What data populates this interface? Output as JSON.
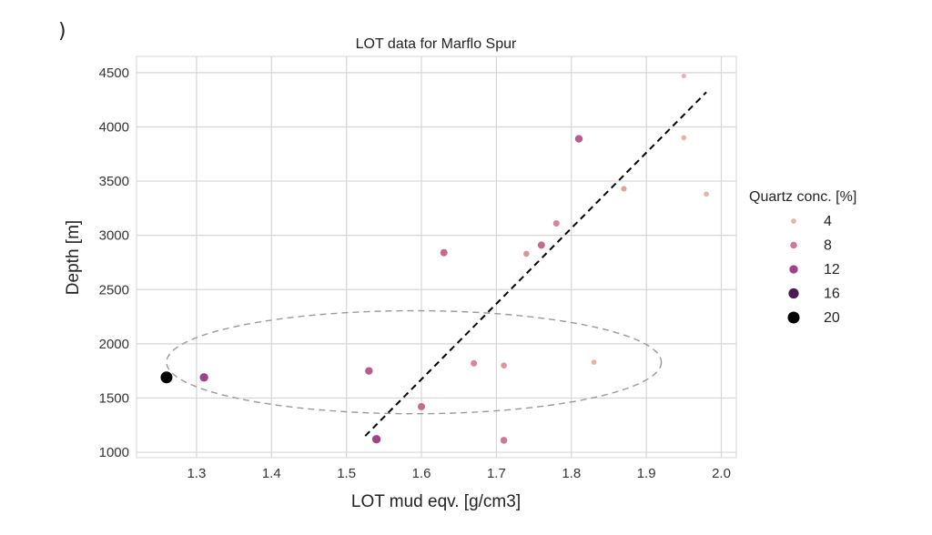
{
  "stray_mark": ")",
  "chart_data": {
    "type": "scatter",
    "title": "LOT data for Marflo Spur",
    "xlabel": "LOT mud eqv. [g/cm3]",
    "ylabel": "Depth [m]",
    "xlim": [
      1.22,
      2.02
    ],
    "ylim": [
      950,
      4650
    ],
    "xticks": [
      "1.3",
      "1.4",
      "1.5",
      "1.6",
      "1.7",
      "1.8",
      "1.9",
      "2.0"
    ],
    "yticks": [
      "1000",
      "1500",
      "2000",
      "2500",
      "3000",
      "3500",
      "4000",
      "4500"
    ],
    "grid": true,
    "legend": {
      "title": "Quartz conc. [%]",
      "placement": "right",
      "entries": [
        "4",
        "8",
        "12",
        "16",
        "20"
      ]
    },
    "colors": {
      "q4": "#e9b1a6",
      "q8": "#d07791",
      "q12": "#a04386",
      "q16": "#4a1a52",
      "q20": "#000000",
      "grid": "#d6d6d6",
      "trend": "#000000",
      "ellipse": "#999999"
    },
    "points": [
      {
        "x": 1.26,
        "y": 1690,
        "q": 20
      },
      {
        "x": 1.31,
        "y": 1690,
        "q": 12
      },
      {
        "x": 1.53,
        "y": 1750,
        "q": 10
      },
      {
        "x": 1.54,
        "y": 1120,
        "q": 12
      },
      {
        "x": 1.6,
        "y": 1420,
        "q": 9
      },
      {
        "x": 1.63,
        "y": 2840,
        "q": 9
      },
      {
        "x": 1.67,
        "y": 1820,
        "q": 7
      },
      {
        "x": 1.71,
        "y": 1800,
        "q": 6
      },
      {
        "x": 1.71,
        "y": 1110,
        "q": 8
      },
      {
        "x": 1.74,
        "y": 2830,
        "q": 6
      },
      {
        "x": 1.76,
        "y": 2910,
        "q": 9
      },
      {
        "x": 1.78,
        "y": 3110,
        "q": 7
      },
      {
        "x": 1.81,
        "y": 3890,
        "q": 10
      },
      {
        "x": 1.83,
        "y": 1830,
        "q": 4
      },
      {
        "x": 1.87,
        "y": 3430,
        "q": 5
      },
      {
        "x": 1.95,
        "y": 4470,
        "q": 3
      },
      {
        "x": 1.95,
        "y": 3900,
        "q": 4
      },
      {
        "x": 1.98,
        "y": 3380,
        "q": 4
      }
    ],
    "trend_line": {
      "x1": 1.525,
      "y1": 1150,
      "x2": 1.98,
      "y2": 4320
    },
    "ellipse": {
      "cx": 1.59,
      "cy": 1830,
      "rx": 0.33,
      "ry": 475
    }
  }
}
